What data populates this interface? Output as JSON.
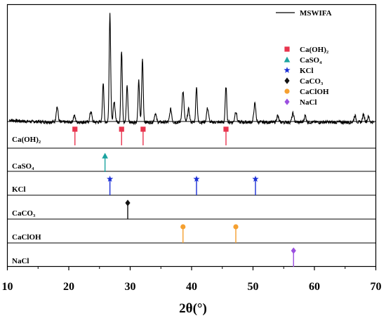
{
  "chart_data": {
    "type": "line",
    "xlabel": "2θ(°)",
    "xlim": [
      10,
      70
    ],
    "x_ticks": [
      10,
      20,
      30,
      40,
      50,
      60,
      70
    ],
    "y_ticks_shown": false,
    "grid": false,
    "legend_position": "top-right",
    "main_series": {
      "name": "MSWIFA",
      "color": "#000000",
      "peaks": [
        {
          "x": 18.1,
          "h": 0.14
        },
        {
          "x": 20.9,
          "h": 0.06
        },
        {
          "x": 23.6,
          "h": 0.1
        },
        {
          "x": 25.6,
          "h": 0.36
        },
        {
          "x": 26.7,
          "h": 1.0
        },
        {
          "x": 27.4,
          "h": 0.18
        },
        {
          "x": 28.6,
          "h": 0.66
        },
        {
          "x": 29.5,
          "h": 0.34
        },
        {
          "x": 31.4,
          "h": 0.38
        },
        {
          "x": 32.0,
          "h": 0.58
        },
        {
          "x": 34.1,
          "h": 0.08
        },
        {
          "x": 36.6,
          "h": 0.12
        },
        {
          "x": 38.6,
          "h": 0.28
        },
        {
          "x": 39.5,
          "h": 0.12
        },
        {
          "x": 40.8,
          "h": 0.33
        },
        {
          "x": 42.6,
          "h": 0.13
        },
        {
          "x": 45.6,
          "h": 0.33
        },
        {
          "x": 47.2,
          "h": 0.1
        },
        {
          "x": 50.3,
          "h": 0.17
        },
        {
          "x": 54.0,
          "h": 0.06
        },
        {
          "x": 56.5,
          "h": 0.08
        },
        {
          "x": 58.5,
          "h": 0.06
        },
        {
          "x": 66.6,
          "h": 0.06
        },
        {
          "x": 68.0,
          "h": 0.07
        },
        {
          "x": 68.8,
          "h": 0.05
        }
      ]
    },
    "reference_phases": [
      {
        "label": "Ca(OH)₂",
        "legend": "Ca(OH)₂",
        "color": "#e8344e",
        "marker": "square",
        "peaks": [
          21.0,
          28.6,
          32.1,
          45.6
        ]
      },
      {
        "label": "CaSO₄",
        "legend": "CaSO₄",
        "color": "#1aa3a0",
        "marker": "triangle",
        "peaks": [
          25.9
        ]
      },
      {
        "label": "KCl",
        "legend": "KCl",
        "color": "#1b2fd6",
        "marker": "star",
        "peaks": [
          26.7,
          40.8,
          50.4
        ]
      },
      {
        "label": "CaCO₃",
        "legend": "CaCO₃",
        "color": "#111111",
        "marker": "diamond",
        "peaks": [
          29.6
        ]
      },
      {
        "label": "CaClOH",
        "legend": "CaClOH",
        "color": "#f5a030",
        "marker": "circle",
        "peaks": [
          38.6,
          47.2
        ]
      },
      {
        "label": "NaCl",
        "legend": "NaCl",
        "color": "#9b4fe0",
        "marker": "diamond",
        "peaks": [
          56.6
        ]
      }
    ]
  }
}
